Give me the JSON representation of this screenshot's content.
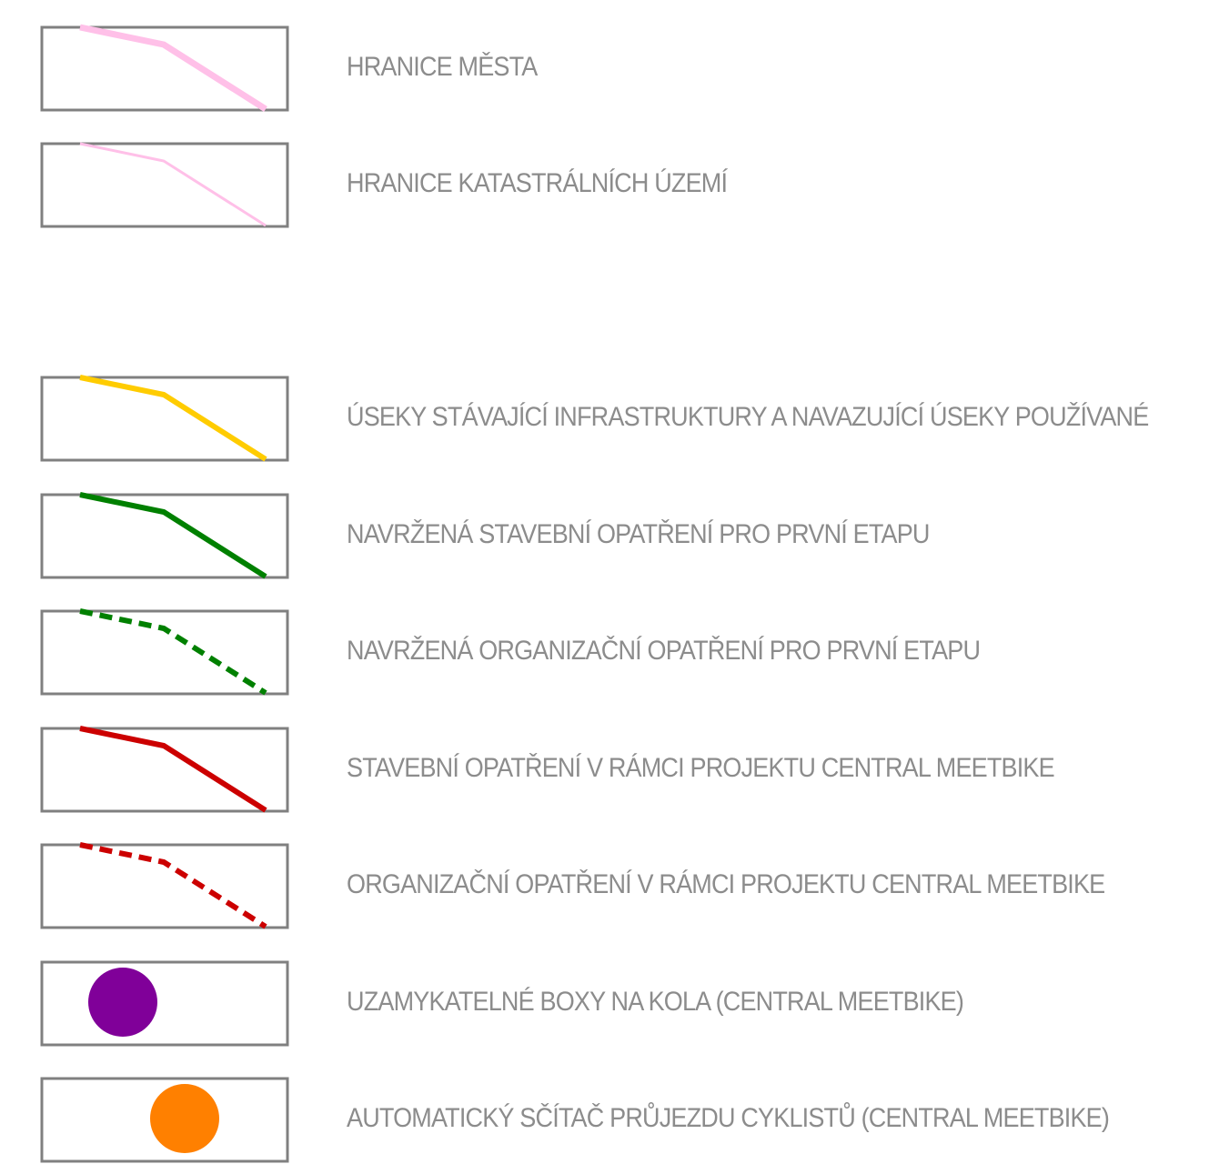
{
  "legend": {
    "items": [
      {
        "id": "city-boundary",
        "label": "HRANICE MĚSTA",
        "symbol": "line",
        "color": "#ffc0e8",
        "style": "solid",
        "width": "thick"
      },
      {
        "id": "cadastral-boundary",
        "label": "HRANICE KATASTRÁLNÍCH ÚZEMÍ",
        "symbol": "line",
        "color": "#ffc0e8",
        "style": "solid",
        "width": "thin"
      },
      {
        "id": "existing-infrastructure",
        "label": "ÚSEKY STÁVAJÍCÍ INFRASTRUKTURY A NAVAZUJÍCÍ ÚSEKY POUŽÍVANÉ",
        "symbol": "line",
        "color": "#ffcc00",
        "style": "solid",
        "width": "medium"
      },
      {
        "id": "construction-first-stage",
        "label": "NAVRŽENÁ STAVEBNÍ OPATŘENÍ PRO PRVNÍ ETAPU",
        "symbol": "line",
        "color": "#008000",
        "style": "solid",
        "width": "medium"
      },
      {
        "id": "organizational-first-stage",
        "label": "NAVRŽENÁ ORGANIZAČNÍ OPATŘENÍ PRO PRVNÍ ETAPU",
        "symbol": "line",
        "color": "#008000",
        "style": "dashed",
        "width": "medium"
      },
      {
        "id": "construction-central-meetbike",
        "label": "STAVEBNÍ OPATŘENÍ V RÁMCI PROJEKTU CENTRAL MEETBIKE",
        "symbol": "line",
        "color": "#cc0000",
        "style": "solid",
        "width": "medium"
      },
      {
        "id": "organizational-central-meetbike",
        "label": "ORGANIZAČNÍ OPATŘENÍ V RÁMCI PROJEKTU CENTRAL MEETBIKE",
        "symbol": "line",
        "color": "#cc0000",
        "style": "dashed",
        "width": "medium"
      },
      {
        "id": "lockable-bike-boxes",
        "label": "UZAMYKATELNÉ BOXY NA KOLA (CENTRAL MEETBIKE)",
        "symbol": "circle",
        "color": "#800099"
      },
      {
        "id": "automatic-cyclist-counter",
        "label": "AUTOMATICKÝ SČÍTAČ PRŮJEZDU CYKLISTŮ (CENTRAL MEETBIKE)",
        "symbol": "circle",
        "color": "#ff8000"
      }
    ],
    "frame_color": "#808080"
  }
}
